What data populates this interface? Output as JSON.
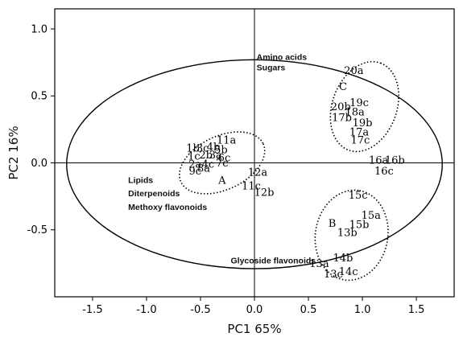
{
  "chart_data": {
    "type": "scatter",
    "title": "",
    "xlabel": "PC1 65%",
    "ylabel": "PC2 16%",
    "xlim": [
      -1.85,
      1.85
    ],
    "ylim": [
      -1.0,
      1.15
    ],
    "xticks": [
      -1.5,
      -1.0,
      -0.5,
      0.0,
      0.5,
      1.0,
      1.5
    ],
    "xtick_labels": [
      "-1.5",
      "-1.0",
      "-0.5",
      "0.0",
      "0.5",
      "1.0",
      "1.5"
    ],
    "yticks": [
      -0.5,
      0.0,
      0.5,
      1.0
    ],
    "ytick_labels": [
      "-0.5",
      "0.0",
      "0.5",
      "1.0"
    ],
    "points": [
      {
        "label": "20a",
        "x": 0.92,
        "y": 0.69
      },
      {
        "label": "19c",
        "x": 0.97,
        "y": 0.45
      },
      {
        "label": "20b",
        "x": 0.8,
        "y": 0.42
      },
      {
        "label": "18a",
        "x": 0.93,
        "y": 0.38
      },
      {
        "label": "17b",
        "x": 0.81,
        "y": 0.34
      },
      {
        "label": "19b",
        "x": 1.0,
        "y": 0.3
      },
      {
        "label": "17c",
        "x": 0.98,
        "y": 0.17
      },
      {
        "label": "17a",
        "x": 0.97,
        "y": 0.23
      },
      {
        "label": "16a",
        "x": 1.15,
        "y": 0.02
      },
      {
        "label": "16b",
        "x": 1.3,
        "y": 0.02
      },
      {
        "label": "16c",
        "x": 1.2,
        "y": -0.06
      },
      {
        "label": "15c",
        "x": 0.96,
        "y": -0.24
      },
      {
        "label": "15a",
        "x": 1.08,
        "y": -0.39
      },
      {
        "label": "15b",
        "x": 0.97,
        "y": -0.46
      },
      {
        "label": "13b",
        "x": 0.86,
        "y": -0.52
      },
      {
        "label": "14b",
        "x": 0.82,
        "y": -0.71
      },
      {
        "label": "13a",
        "x": 0.6,
        "y": -0.75
      },
      {
        "label": "14c",
        "x": 0.87,
        "y": -0.81
      },
      {
        "label": "13c",
        "x": 0.73,
        "y": -0.83
      },
      {
        "label": "11a",
        "x": -0.26,
        "y": 0.17
      },
      {
        "label": "1b",
        "x": -0.57,
        "y": 0.11
      },
      {
        "label": "3c",
        "x": -0.48,
        "y": 0.11
      },
      {
        "label": "4b",
        "x": -0.38,
        "y": 0.12
      },
      {
        "label": "1c",
        "x": -0.56,
        "y": 0.05
      },
      {
        "label": "2b",
        "x": -0.45,
        "y": 0.06
      },
      {
        "label": "3a",
        "x": -0.36,
        "y": 0.06
      },
      {
        "label": "5b",
        "x": -0.31,
        "y": 0.1
      },
      {
        "label": "6c",
        "x": -0.28,
        "y": 0.04
      },
      {
        "label": "2a",
        "x": -0.55,
        "y": -0.01
      },
      {
        "label": "4c",
        "x": -0.43,
        "y": -0.01
      },
      {
        "label": "7c",
        "x": -0.3,
        "y": 0.0
      },
      {
        "label": "8a",
        "x": -0.47,
        "y": -0.04
      },
      {
        "label": "9c",
        "x": -0.55,
        "y": -0.06
      },
      {
        "label": "12a",
        "x": 0.03,
        "y": -0.07
      },
      {
        "label": "11c",
        "x": -0.03,
        "y": -0.17
      },
      {
        "label": "12b",
        "x": 0.09,
        "y": -0.22
      }
    ],
    "group_labels": [
      {
        "label": "A",
        "x": -0.3,
        "y": -0.13
      },
      {
        "label": "B",
        "x": 0.72,
        "y": -0.45
      },
      {
        "label": "C",
        "x": 0.82,
        "y": 0.57
      }
    ],
    "group_ellipses": [
      {
        "group": "A",
        "cx": -0.3,
        "cy": 0.0,
        "rx": 0.42,
        "ry": 0.2,
        "angle": -25
      },
      {
        "group": "B",
        "cx": 0.9,
        "cy": -0.54,
        "rx": 0.42,
        "ry": 0.27,
        "angle": -80
      },
      {
        "group": "C",
        "cx": 1.02,
        "cy": 0.42,
        "rx": 0.43,
        "ry": 0.24,
        "angle": -70
      }
    ],
    "confidence_ellipse": {
      "cx": 0.0,
      "cy": -0.01,
      "rx": 1.74,
      "ry": 0.78
    },
    "annotations": [
      {
        "text": "Amino acids",
        "x": 0.02,
        "y": 0.77
      },
      {
        "text": "Sugars",
        "x": 0.02,
        "y": 0.69
      },
      {
        "text": "Lipids",
        "x": -1.17,
        "y": -0.15
      },
      {
        "text": "Diterpenoids",
        "x": -1.17,
        "y": -0.25
      },
      {
        "text": "Methoxy flavonoids",
        "x": -1.17,
        "y": -0.35
      },
      {
        "text": "Glycoside flavonoids",
        "x": -0.22,
        "y": -0.75
      }
    ],
    "reference_lines": {
      "x": 0,
      "y": 0
    },
    "grid": false,
    "legend": "none"
  }
}
